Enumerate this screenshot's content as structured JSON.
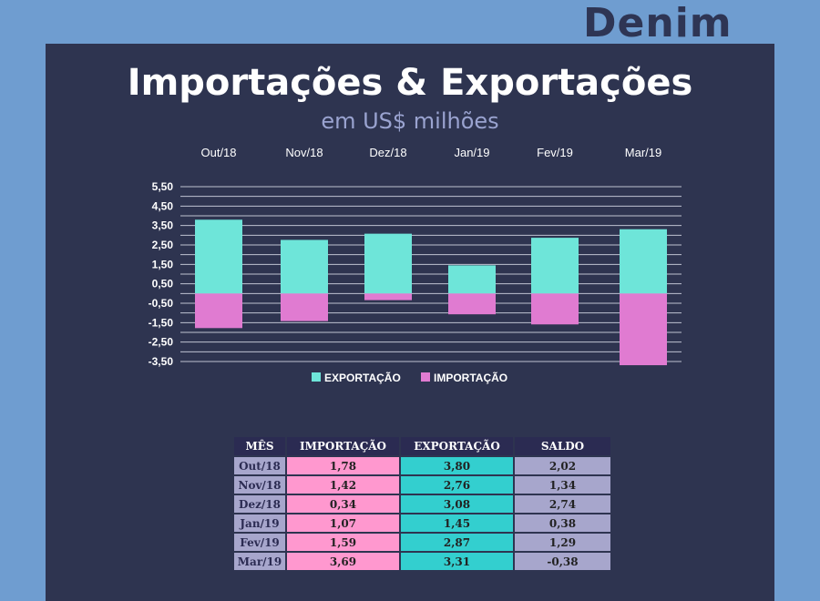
{
  "brand": "Denim",
  "chart_data": {
    "type": "bar",
    "title": "Importações & Exportações",
    "subtitle": "em US$ milhões",
    "categories": [
      "Out/18",
      "Nov/18",
      "Dez/18",
      "Jan/19",
      "Fev/19",
      "Mar/19"
    ],
    "series": [
      {
        "name": "EXPORTAÇÃO",
        "color": "#6ee5d9",
        "values": [
          3.8,
          2.76,
          3.08,
          1.45,
          2.87,
          3.31
        ]
      },
      {
        "name": "IMPORTAÇÃO",
        "color": "#e07bd1",
        "values": [
          -1.78,
          -1.42,
          -0.34,
          -1.07,
          -1.59,
          -3.69
        ]
      }
    ],
    "yticks": [
      "5,50",
      "4,50",
      "3,50",
      "2,50",
      "1,50",
      "0,50",
      "-0,50",
      "-1,50",
      "-2,50",
      "-3,50"
    ],
    "ylim": [
      -3.5,
      5.5
    ],
    "legend": "bottom",
    "grid": true
  },
  "table": {
    "headers": [
      "MÊS",
      "IMPORTAÇÃO",
      "EXPORTAÇÃO",
      "SALDO"
    ],
    "rows": [
      [
        "Out/18",
        "1,78",
        "3,80",
        "2,02"
      ],
      [
        "Nov/18",
        "1,42",
        "2,76",
        "1,34"
      ],
      [
        "Dez/18",
        "0,34",
        "3,08",
        "2,74"
      ],
      [
        "Jan/19",
        "1,07",
        "1,45",
        "0,38"
      ],
      [
        "Fev/19",
        "1,59",
        "2,87",
        "1,29"
      ],
      [
        "Mar/19",
        "3,69",
        "3,31",
        "-0,38"
      ]
    ]
  }
}
